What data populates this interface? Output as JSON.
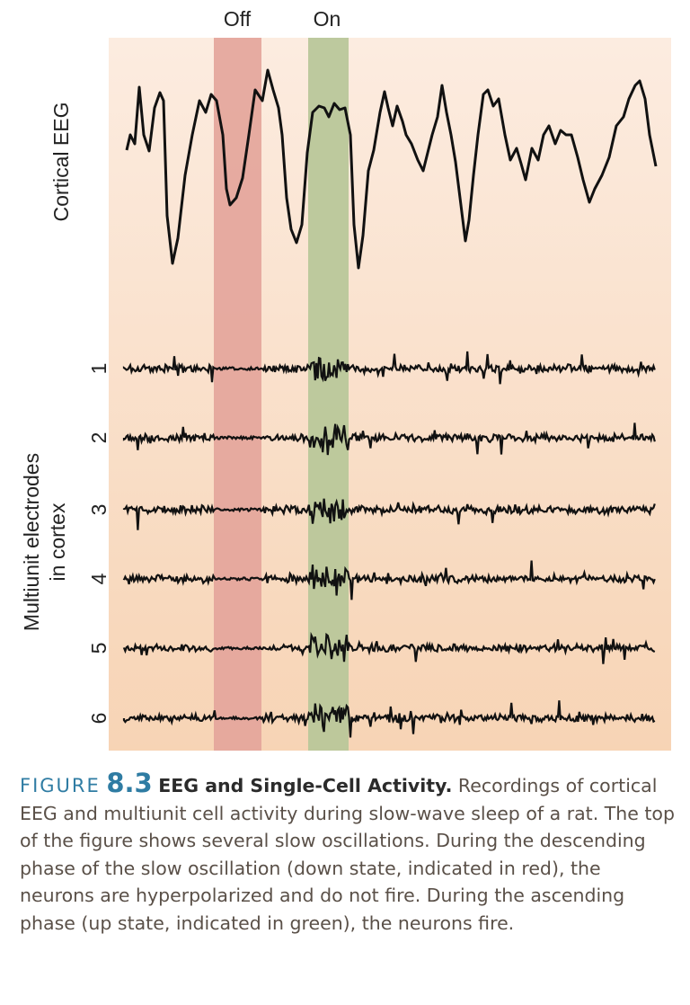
{
  "figure": {
    "state_labels": {
      "off": "Off",
      "on": "On"
    },
    "eeg_label": "Cortical EEG",
    "electrodes_label": [
      "Multiunit electrodes",
      "in cortex"
    ],
    "electrode_numbers": [
      "1",
      "2",
      "3",
      "4",
      "5",
      "6"
    ],
    "colors": {
      "background": "#f9dcc2",
      "off_band": "#e4a59b",
      "on_band": "#b9c79a",
      "trace": "#111111"
    }
  },
  "caption": {
    "figure_word": "FIGURE",
    "figure_number": "8.3",
    "title": "EEG and Single-Cell Activity.",
    "body": "Recordings of cortical EEG and multiunit cell activity during slow-wave sleep of a rat. The top of the figure shows several slow oscillations. During the descending phase of the slow oscillation (down state, indicated in red), the neurons are hyperpolarized and do not fire. During the ascending phase (up state, indicated in green), the neurons fire."
  }
}
